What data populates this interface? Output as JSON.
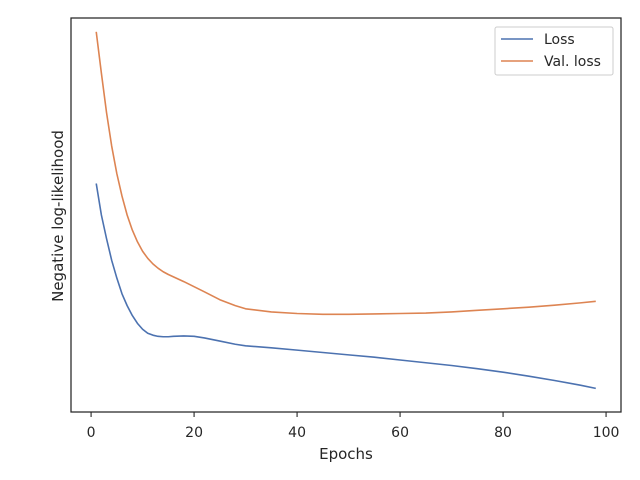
{
  "chart_data": {
    "type": "line",
    "title": "",
    "xlabel": "Epochs",
    "ylabel": "Negative log-likelihood",
    "xlim": [
      -3.9,
      102.9
    ],
    "ylim": [
      0,
      1
    ],
    "x_ticks": [
      0,
      20,
      40,
      60,
      80,
      100
    ],
    "y_ticks_shown": false,
    "grid": false,
    "legend_position": "top-right",
    "series": [
      {
        "name": "Loss",
        "color": "#4c72b0",
        "x": [
          1,
          2,
          3,
          4,
          5,
          6,
          7,
          8,
          9,
          10,
          11,
          12,
          13,
          14,
          15,
          16,
          18,
          20,
          22,
          25,
          28,
          30,
          35,
          40,
          45,
          50,
          55,
          60,
          65,
          70,
          75,
          80,
          85,
          90,
          95,
          98
        ],
        "y": [
          0.58,
          0.5,
          0.44,
          0.385,
          0.34,
          0.3,
          0.27,
          0.245,
          0.225,
          0.21,
          0.2,
          0.195,
          0.192,
          0.191,
          0.191,
          0.192,
          0.193,
          0.192,
          0.188,
          0.18,
          0.172,
          0.168,
          0.163,
          0.157,
          0.151,
          0.145,
          0.139,
          0.132,
          0.125,
          0.118,
          0.11,
          0.101,
          0.091,
          0.08,
          0.068,
          0.06
        ]
      },
      {
        "name": "Val. loss",
        "color": "#dd8452",
        "x": [
          1,
          2,
          3,
          4,
          5,
          6,
          7,
          8,
          9,
          10,
          11,
          12,
          13,
          14,
          15,
          16,
          18,
          20,
          22,
          25,
          28,
          30,
          35,
          40,
          45,
          50,
          55,
          60,
          65,
          70,
          75,
          80,
          85,
          90,
          95,
          98
        ],
        "y": [
          0.965,
          0.86,
          0.76,
          0.675,
          0.605,
          0.548,
          0.5,
          0.462,
          0.432,
          0.408,
          0.39,
          0.376,
          0.365,
          0.356,
          0.349,
          0.343,
          0.331,
          0.318,
          0.305,
          0.285,
          0.27,
          0.262,
          0.254,
          0.25,
          0.248,
          0.248,
          0.249,
          0.25,
          0.251,
          0.254,
          0.258,
          0.262,
          0.266,
          0.271,
          0.277,
          0.281
        ]
      }
    ]
  }
}
